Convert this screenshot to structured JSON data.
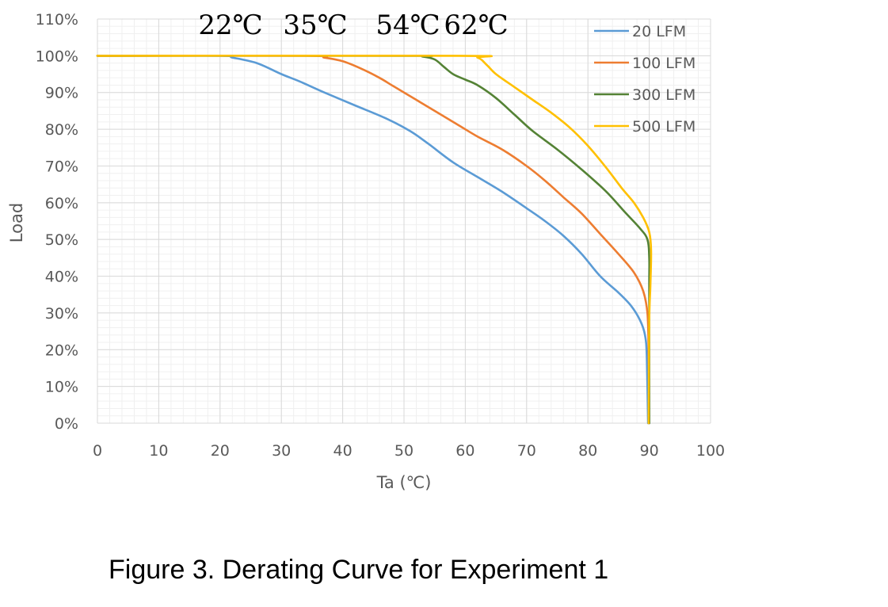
{
  "caption": "Figure 3. Derating Curve for Experiment 1",
  "chart_data": {
    "type": "line",
    "xlabel": "Ta (℃)",
    "ylabel": "Load",
    "xlim": [
      0,
      100
    ],
    "ylim": [
      0,
      110
    ],
    "x_ticks": [
      0,
      10,
      20,
      30,
      40,
      50,
      60,
      70,
      80,
      90,
      100
    ],
    "y_ticks": [
      "0%",
      "10%",
      "20%",
      "30%",
      "40%",
      "50%",
      "60%",
      "70%",
      "80%",
      "90%",
      "100%",
      "110%"
    ],
    "grid": true,
    "legend_position": "top-right",
    "annotations": [
      "22℃",
      "35℃",
      "54℃",
      "62℃"
    ],
    "series": [
      {
        "name": "20 LFM",
        "color": "#5b9bd5",
        "points": [
          [
            0,
            100
          ],
          [
            20,
            100
          ],
          [
            22,
            99.5
          ],
          [
            26,
            98
          ],
          [
            30,
            95
          ],
          [
            33,
            93
          ],
          [
            37,
            90
          ],
          [
            42,
            86.5
          ],
          [
            47,
            83
          ],
          [
            51,
            79.5
          ],
          [
            54,
            76
          ],
          [
            58,
            71
          ],
          [
            62,
            67
          ],
          [
            66,
            63
          ],
          [
            70,
            58.5
          ],
          [
            73,
            55
          ],
          [
            76,
            51
          ],
          [
            79,
            46
          ],
          [
            82,
            40
          ],
          [
            85,
            35.5
          ],
          [
            87,
            32
          ],
          [
            88.5,
            28
          ],
          [
            89.3,
            24
          ],
          [
            89.6,
            18
          ],
          [
            89.8,
            0
          ]
        ]
      },
      {
        "name": "100 LFM",
        "color": "#ed7d31",
        "points": [
          [
            0,
            100
          ],
          [
            34,
            100
          ],
          [
            37,
            99.5
          ],
          [
            40,
            98.5
          ],
          [
            43,
            96.5
          ],
          [
            46,
            94
          ],
          [
            48,
            92
          ],
          [
            50,
            90
          ],
          [
            53,
            87
          ],
          [
            56,
            84
          ],
          [
            59,
            81
          ],
          [
            62,
            78
          ],
          [
            66,
            74.5
          ],
          [
            70,
            70
          ],
          [
            73,
            66
          ],
          [
            76,
            61.5
          ],
          [
            79,
            57
          ],
          [
            82,
            51.5
          ],
          [
            85,
            46
          ],
          [
            87.5,
            41
          ],
          [
            89,
            36
          ],
          [
            89.7,
            30
          ],
          [
            89.9,
            20
          ],
          [
            90,
            0
          ]
        ]
      },
      {
        "name": "300 LFM",
        "color": "#548235",
        "points": [
          [
            0,
            100
          ],
          [
            50,
            100
          ],
          [
            53,
            99.8
          ],
          [
            55,
            99
          ],
          [
            56.5,
            97
          ],
          [
            58,
            95
          ],
          [
            60,
            93.5
          ],
          [
            62,
            92
          ],
          [
            65,
            88.5
          ],
          [
            68,
            84
          ],
          [
            71,
            79.5
          ],
          [
            75,
            74.5
          ],
          [
            79,
            69
          ],
          [
            83,
            63
          ],
          [
            86,
            57.5
          ],
          [
            88.5,
            53
          ],
          [
            89.7,
            50
          ],
          [
            90,
            45
          ],
          [
            90,
            36
          ],
          [
            90,
            0
          ]
        ]
      },
      {
        "name": "500 LFM",
        "color": "#ffc000",
        "points": [
          [
            0,
            100
          ],
          [
            59,
            100
          ],
          [
            62,
            99.5
          ],
          [
            63.5,
            97.5
          ],
          [
            65,
            95
          ],
          [
            68,
            91.5
          ],
          [
            71,
            88
          ],
          [
            74,
            84.5
          ],
          [
            77,
            80.5
          ],
          [
            80,
            75.5
          ],
          [
            83,
            69.5
          ],
          [
            85.5,
            64
          ],
          [
            87.5,
            60
          ],
          [
            89,
            56
          ],
          [
            90,
            52
          ],
          [
            90.3,
            47
          ],
          [
            90.2,
            38
          ],
          [
            90,
            28
          ],
          [
            89.9,
            0
          ]
        ]
      }
    ]
  }
}
